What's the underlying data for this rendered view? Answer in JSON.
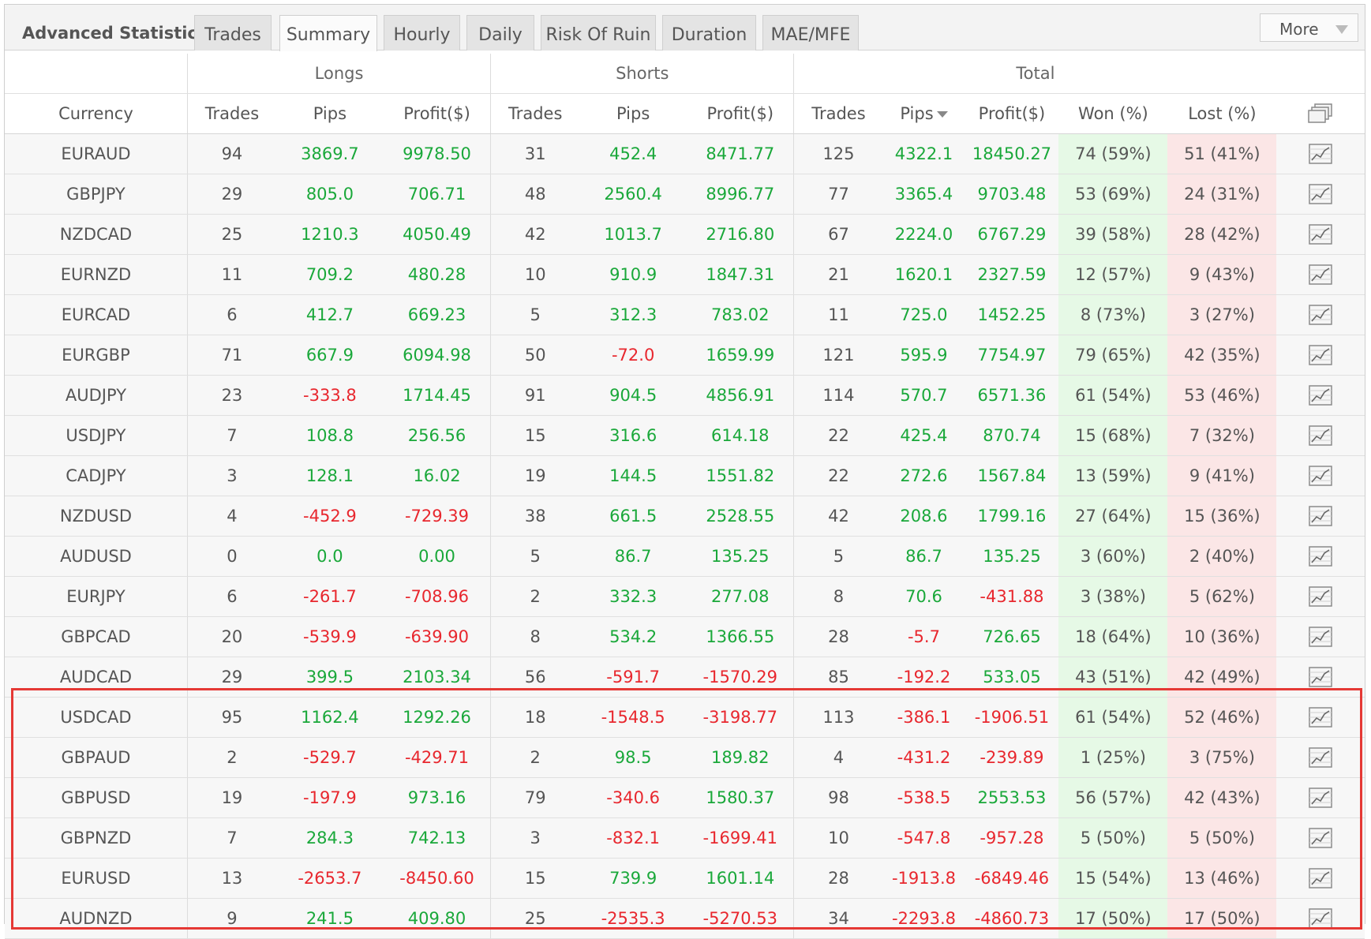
{
  "header": {
    "title": "Advanced Statistics",
    "tabs": [
      {
        "label": "Trades",
        "active": false
      },
      {
        "label": "Summary",
        "active": true
      },
      {
        "label": "Hourly",
        "active": false
      },
      {
        "label": "Daily",
        "active": false
      },
      {
        "label": "Risk Of Ruin",
        "active": false
      },
      {
        "label": "Duration",
        "active": false
      },
      {
        "label": "MAE/MFE",
        "active": false
      }
    ],
    "more_label": "More"
  },
  "table": {
    "groups": {
      "longs": "Longs",
      "shorts": "Shorts",
      "total": "Total"
    },
    "columns": {
      "currency": "Currency",
      "trades": "Trades",
      "pips": "Pips",
      "profit": "Profit($)",
      "won": "Won (%)",
      "lost": "Lost (%)"
    },
    "rows": [
      {
        "currency": "EURAUD",
        "long_trades": "94",
        "long_pips": "3869.7",
        "long_profit": "9978.50",
        "short_trades": "31",
        "short_pips": "452.4",
        "short_profit": "8471.77",
        "total_trades": "125",
        "total_pips": "4322.1",
        "total_profit": "18450.27",
        "won": "74 (59%)",
        "lost": "51 (41%)"
      },
      {
        "currency": "GBPJPY",
        "long_trades": "29",
        "long_pips": "805.0",
        "long_profit": "706.71",
        "short_trades": "48",
        "short_pips": "2560.4",
        "short_profit": "8996.77",
        "total_trades": "77",
        "total_pips": "3365.4",
        "total_profit": "9703.48",
        "won": "53 (69%)",
        "lost": "24 (31%)"
      },
      {
        "currency": "NZDCAD",
        "long_trades": "25",
        "long_pips": "1210.3",
        "long_profit": "4050.49",
        "short_trades": "42",
        "short_pips": "1013.7",
        "short_profit": "2716.80",
        "total_trades": "67",
        "total_pips": "2224.0",
        "total_profit": "6767.29",
        "won": "39 (58%)",
        "lost": "28 (42%)"
      },
      {
        "currency": "EURNZD",
        "long_trades": "11",
        "long_pips": "709.2",
        "long_profit": "480.28",
        "short_trades": "10",
        "short_pips": "910.9",
        "short_profit": "1847.31",
        "total_trades": "21",
        "total_pips": "1620.1",
        "total_profit": "2327.59",
        "won": "12 (57%)",
        "lost": "9 (43%)"
      },
      {
        "currency": "EURCAD",
        "long_trades": "6",
        "long_pips": "412.7",
        "long_profit": "669.23",
        "short_trades": "5",
        "short_pips": "312.3",
        "short_profit": "783.02",
        "total_trades": "11",
        "total_pips": "725.0",
        "total_profit": "1452.25",
        "won": "8 (73%)",
        "lost": "3 (27%)"
      },
      {
        "currency": "EURGBP",
        "long_trades": "71",
        "long_pips": "667.9",
        "long_profit": "6094.98",
        "short_trades": "50",
        "short_pips": "-72.0",
        "short_profit": "1659.99",
        "total_trades": "121",
        "total_pips": "595.9",
        "total_profit": "7754.97",
        "won": "79 (65%)",
        "lost": "42 (35%)"
      },
      {
        "currency": "AUDJPY",
        "long_trades": "23",
        "long_pips": "-333.8",
        "long_profit": "1714.45",
        "short_trades": "91",
        "short_pips": "904.5",
        "short_profit": "4856.91",
        "total_trades": "114",
        "total_pips": "570.7",
        "total_profit": "6571.36",
        "won": "61 (54%)",
        "lost": "53 (46%)"
      },
      {
        "currency": "USDJPY",
        "long_trades": "7",
        "long_pips": "108.8",
        "long_profit": "256.56",
        "short_trades": "15",
        "short_pips": "316.6",
        "short_profit": "614.18",
        "total_trades": "22",
        "total_pips": "425.4",
        "total_profit": "870.74",
        "won": "15 (68%)",
        "lost": "7 (32%)"
      },
      {
        "currency": "CADJPY",
        "long_trades": "3",
        "long_pips": "128.1",
        "long_profit": "16.02",
        "short_trades": "19",
        "short_pips": "144.5",
        "short_profit": "1551.82",
        "total_trades": "22",
        "total_pips": "272.6",
        "total_profit": "1567.84",
        "won": "13 (59%)",
        "lost": "9 (41%)"
      },
      {
        "currency": "NZDUSD",
        "long_trades": "4",
        "long_pips": "-452.9",
        "long_profit": "-729.39",
        "short_trades": "38",
        "short_pips": "661.5",
        "short_profit": "2528.55",
        "total_trades": "42",
        "total_pips": "208.6",
        "total_profit": "1799.16",
        "won": "27 (64%)",
        "lost": "15 (36%)"
      },
      {
        "currency": "AUDUSD",
        "long_trades": "0",
        "long_pips": "0.0",
        "long_profit": "0.00",
        "short_trades": "5",
        "short_pips": "86.7",
        "short_profit": "135.25",
        "total_trades": "5",
        "total_pips": "86.7",
        "total_profit": "135.25",
        "won": "3 (60%)",
        "lost": "2 (40%)"
      },
      {
        "currency": "EURJPY",
        "long_trades": "6",
        "long_pips": "-261.7",
        "long_profit": "-708.96",
        "short_trades": "2",
        "short_pips": "332.3",
        "short_profit": "277.08",
        "total_trades": "8",
        "total_pips": "70.6",
        "total_profit": "-431.88",
        "won": "3 (38%)",
        "lost": "5 (62%)"
      },
      {
        "currency": "GBPCAD",
        "long_trades": "20",
        "long_pips": "-539.9",
        "long_profit": "-639.90",
        "short_trades": "8",
        "short_pips": "534.2",
        "short_profit": "1366.55",
        "total_trades": "28",
        "total_pips": "-5.7",
        "total_profit": "726.65",
        "won": "18 (64%)",
        "lost": "10 (36%)"
      },
      {
        "currency": "AUDCAD",
        "long_trades": "29",
        "long_pips": "399.5",
        "long_profit": "2103.34",
        "short_trades": "56",
        "short_pips": "-591.7",
        "short_profit": "-1570.29",
        "total_trades": "85",
        "total_pips": "-192.2",
        "total_profit": "533.05",
        "won": "43 (51%)",
        "lost": "42 (49%)"
      },
      {
        "currency": "USDCAD",
        "long_trades": "95",
        "long_pips": "1162.4",
        "long_profit": "1292.26",
        "short_trades": "18",
        "short_pips": "-1548.5",
        "short_profit": "-3198.77",
        "total_trades": "113",
        "total_pips": "-386.1",
        "total_profit": "-1906.51",
        "won": "61 (54%)",
        "lost": "52 (46%)"
      },
      {
        "currency": "GBPAUD",
        "long_trades": "2",
        "long_pips": "-529.7",
        "long_profit": "-429.71",
        "short_trades": "2",
        "short_pips": "98.5",
        "short_profit": "189.82",
        "total_trades": "4",
        "total_pips": "-431.2",
        "total_profit": "-239.89",
        "won": "1 (25%)",
        "lost": "3 (75%)"
      },
      {
        "currency": "GBPUSD",
        "long_trades": "19",
        "long_pips": "-197.9",
        "long_profit": "973.16",
        "short_trades": "79",
        "short_pips": "-340.6",
        "short_profit": "1580.37",
        "total_trades": "98",
        "total_pips": "-538.5",
        "total_profit": "2553.53",
        "won": "56 (57%)",
        "lost": "42 (43%)"
      },
      {
        "currency": "GBPNZD",
        "long_trades": "7",
        "long_pips": "284.3",
        "long_profit": "742.13",
        "short_trades": "3",
        "short_pips": "-832.1",
        "short_profit": "-1699.41",
        "total_trades": "10",
        "total_pips": "-547.8",
        "total_profit": "-957.28",
        "won": "5 (50%)",
        "lost": "5 (50%)"
      },
      {
        "currency": "EURUSD",
        "long_trades": "13",
        "long_pips": "-2653.7",
        "long_profit": "-8450.60",
        "short_trades": "15",
        "short_pips": "739.9",
        "short_profit": "1601.14",
        "total_trades": "28",
        "total_pips": "-1913.8",
        "total_profit": "-6849.46",
        "won": "15 (54%)",
        "lost": "13 (46%)"
      },
      {
        "currency": "AUDNZD",
        "long_trades": "9",
        "long_pips": "241.5",
        "long_profit": "409.80",
        "short_trades": "25",
        "short_pips": "-2535.3",
        "short_profit": "-5270.53",
        "total_trades": "34",
        "total_pips": "-2293.8",
        "total_profit": "-4860.73",
        "won": "17 (50%)",
        "lost": "17 (50%)"
      }
    ]
  },
  "icons": {
    "row_chart": "line-chart-icon",
    "header_charts": "multi-chart-icon",
    "sort": "sort-desc-icon"
  },
  "colors": {
    "positive": "#1aa83a",
    "negative": "#e8272e",
    "won_bg": "#e6f9e6",
    "lost_bg": "#fbe6e6",
    "highlight": "#e53935"
  }
}
